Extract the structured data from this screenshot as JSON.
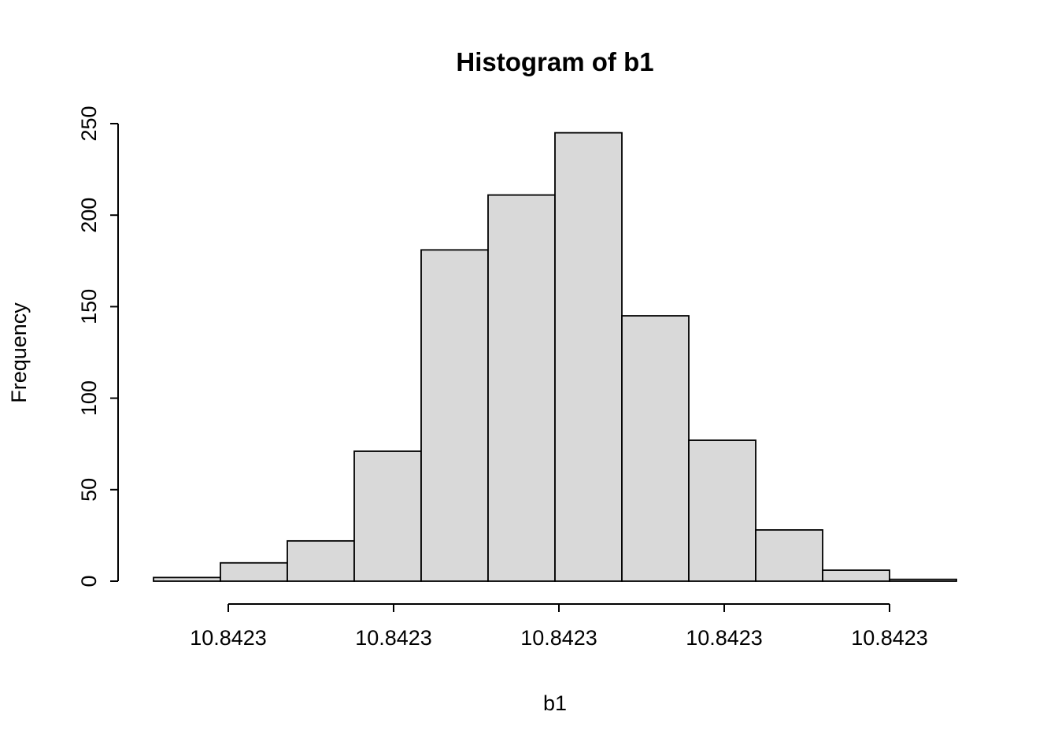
{
  "title": "Histogram of b1",
  "chart_data": {
    "type": "bar",
    "title": "Histogram of b1",
    "xlabel": "b1",
    "ylabel": "Frequency",
    "values": [
      2,
      10,
      22,
      71,
      181,
      211,
      245,
      145,
      77,
      28,
      6,
      1
    ],
    "x_tick_labels": [
      "10.8423",
      "10.8423",
      "10.8423",
      "10.8423",
      "10.8423"
    ],
    "y_ticks": [
      0,
      50,
      100,
      150,
      200,
      250
    ],
    "ylim": [
      0,
      250
    ],
    "grid": "off",
    "legend": "none",
    "bar_fill": "#d9d9d9",
    "bar_stroke": "#000000",
    "axis_color": "#000000",
    "background": "#ffffff"
  }
}
